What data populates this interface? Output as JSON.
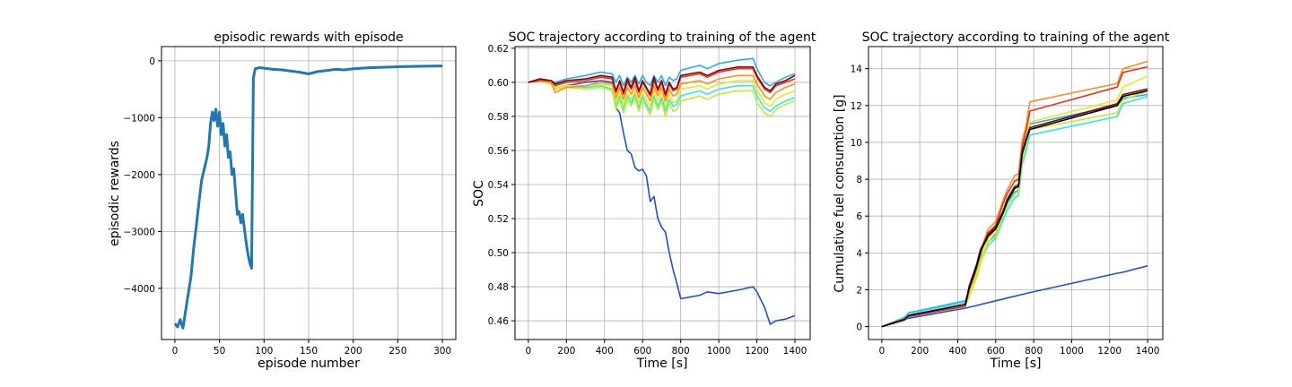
{
  "chart_data": [
    {
      "type": "line",
      "title": "episodic rewards with episode",
      "xlabel": "episode number",
      "ylabel": "episodic rewards",
      "xlim": [
        -15,
        315
      ],
      "ylim": [
        -4900,
        250
      ],
      "xticks": [
        0,
        50,
        100,
        150,
        200,
        250,
        300
      ],
      "yticks": [
        0,
        -1000,
        -2000,
        -3000,
        -4000
      ],
      "ytick_labels": [
        "0",
        "−1000",
        "−2000",
        "−3000",
        "−4000"
      ],
      "grid": true,
      "series": [
        {
          "color": "#1f77b4",
          "x": [
            0,
            3,
            6,
            9,
            12,
            15,
            18,
            21,
            24,
            27,
            30,
            33,
            36,
            38,
            40,
            42,
            44,
            46,
            48,
            50,
            52,
            54,
            56,
            58,
            60,
            62,
            64,
            66,
            68,
            70,
            72,
            74,
            76,
            78,
            80,
            82,
            84,
            86,
            88,
            90,
            95,
            100,
            110,
            120,
            130,
            140,
            150,
            160,
            170,
            180,
            190,
            200,
            220,
            240,
            260,
            280,
            300
          ],
          "values": [
            -4620,
            -4680,
            -4550,
            -4700,
            -4400,
            -4100,
            -3800,
            -3300,
            -2900,
            -2500,
            -2100,
            -1900,
            -1700,
            -1500,
            -1100,
            -900,
            -1050,
            -850,
            -1150,
            -900,
            -1300,
            -1100,
            -1500,
            -1300,
            -1700,
            -1600,
            -2000,
            -1900,
            -2300,
            -2700,
            -2650,
            -2850,
            -2700,
            -2950,
            -3200,
            -3400,
            -3550,
            -3650,
            -300,
            -140,
            -120,
            -130,
            -150,
            -160,
            -180,
            -200,
            -230,
            -190,
            -170,
            -150,
            -160,
            -140,
            -120,
            -110,
            -100,
            -95,
            -90
          ]
        }
      ]
    },
    {
      "type": "line",
      "title": "SOC trajectory according to training of the agent",
      "xlabel": "Time [s]",
      "ylabel": "SOC",
      "xlim": [
        -70,
        1480
      ],
      "ylim": [
        0.449,
        0.621
      ],
      "xticks": [
        0,
        200,
        400,
        600,
        800,
        1000,
        1200,
        1400
      ],
      "yticks": [
        0.46,
        0.48,
        0.5,
        0.52,
        0.54,
        0.56,
        0.58,
        0.6,
        0.62
      ],
      "ytick_labels": [
        "0.46",
        "0.48",
        "0.50",
        "0.52",
        "0.54",
        "0.56",
        "0.58",
        "0.60",
        "0.62"
      ],
      "grid": true,
      "x": [
        0,
        60,
        120,
        140,
        200,
        300,
        380,
        440,
        460,
        480,
        500,
        520,
        540,
        560,
        580,
        600,
        620,
        640,
        660,
        680,
        700,
        720,
        740,
        760,
        780,
        800,
        900,
        940,
        1000,
        1100,
        1180,
        1200,
        1240,
        1270,
        1300,
        1350,
        1400
      ],
      "series": [
        {
          "color": "#1f4fd8",
          "values": [
            0.6,
            0.601,
            0.6,
            0.597,
            0.598,
            0.6,
            0.601,
            0.6,
            0.585,
            0.582,
            0.57,
            0.56,
            0.558,
            0.55,
            0.548,
            0.549,
            0.545,
            0.53,
            0.533,
            0.52,
            0.515,
            0.512,
            0.5,
            0.49,
            0.482,
            0.473,
            0.475,
            0.477,
            0.476,
            0.478,
            0.48,
            0.477,
            0.468,
            0.458,
            0.46,
            0.461,
            0.463
          ]
        },
        {
          "color": "#1fb0f0",
          "values": [
            0.6,
            0.602,
            0.601,
            0.6,
            0.602,
            0.604,
            0.606,
            0.605,
            0.6,
            0.604,
            0.598,
            0.603,
            0.6,
            0.604,
            0.599,
            0.604,
            0.6,
            0.598,
            0.604,
            0.6,
            0.604,
            0.598,
            0.603,
            0.601,
            0.602,
            0.607,
            0.61,
            0.608,
            0.611,
            0.613,
            0.614,
            0.608,
            0.6,
            0.598,
            0.6,
            0.603,
            0.605
          ]
        },
        {
          "color": "#33e6e6",
          "values": [
            0.6,
            0.601,
            0.599,
            0.597,
            0.598,
            0.597,
            0.598,
            0.596,
            0.586,
            0.592,
            0.584,
            0.592,
            0.588,
            0.593,
            0.585,
            0.592,
            0.587,
            0.583,
            0.592,
            0.586,
            0.591,
            0.583,
            0.59,
            0.586,
            0.587,
            0.592,
            0.595,
            0.593,
            0.596,
            0.598,
            0.598,
            0.592,
            0.585,
            0.583,
            0.586,
            0.589,
            0.591
          ]
        },
        {
          "color": "#b8f02a",
          "values": [
            0.6,
            0.601,
            0.599,
            0.596,
            0.597,
            0.596,
            0.597,
            0.595,
            0.584,
            0.59,
            0.582,
            0.59,
            0.586,
            0.591,
            0.583,
            0.59,
            0.585,
            0.581,
            0.59,
            0.584,
            0.589,
            0.58,
            0.588,
            0.583,
            0.584,
            0.589,
            0.592,
            0.59,
            0.593,
            0.595,
            0.595,
            0.588,
            0.582,
            0.58,
            0.584,
            0.587,
            0.589
          ]
        },
        {
          "color": "#e8e81c",
          "values": [
            0.6,
            0.601,
            0.6,
            0.597,
            0.598,
            0.598,
            0.599,
            0.598,
            0.589,
            0.594,
            0.587,
            0.594,
            0.59,
            0.595,
            0.588,
            0.594,
            0.59,
            0.586,
            0.595,
            0.589,
            0.594,
            0.586,
            0.593,
            0.588,
            0.589,
            0.596,
            0.598,
            0.596,
            0.599,
            0.601,
            0.601,
            0.596,
            0.588,
            0.586,
            0.59,
            0.593,
            0.595
          ]
        },
        {
          "color": "#ff8c1a",
          "values": [
            0.6,
            0.601,
            0.6,
            0.594,
            0.597,
            0.598,
            0.6,
            0.599,
            0.591,
            0.597,
            0.59,
            0.597,
            0.593,
            0.598,
            0.591,
            0.597,
            0.593,
            0.589,
            0.598,
            0.592,
            0.597,
            0.589,
            0.596,
            0.592,
            0.593,
            0.599,
            0.601,
            0.599,
            0.602,
            0.604,
            0.604,
            0.599,
            0.592,
            0.59,
            0.594,
            0.597,
            0.599
          ]
        },
        {
          "color": "#e8331c",
          "values": [
            0.6,
            0.601,
            0.601,
            0.598,
            0.6,
            0.601,
            0.603,
            0.602,
            0.594,
            0.6,
            0.593,
            0.6,
            0.596,
            0.601,
            0.594,
            0.6,
            0.596,
            0.592,
            0.601,
            0.595,
            0.6,
            0.592,
            0.599,
            0.595,
            0.596,
            0.603,
            0.605,
            0.603,
            0.606,
            0.608,
            0.608,
            0.603,
            0.596,
            0.594,
            0.598,
            0.6,
            0.602
          ]
        },
        {
          "color": "#8b0000",
          "values": [
            0.6,
            0.602,
            0.601,
            0.599,
            0.601,
            0.602,
            0.604,
            0.603,
            0.595,
            0.601,
            0.594,
            0.602,
            0.597,
            0.603,
            0.595,
            0.601,
            0.597,
            0.593,
            0.603,
            0.596,
            0.601,
            0.593,
            0.6,
            0.596,
            0.597,
            0.604,
            0.606,
            0.604,
            0.607,
            0.609,
            0.609,
            0.604,
            0.597,
            0.595,
            0.599,
            0.601,
            0.604
          ]
        }
      ]
    },
    {
      "type": "line",
      "title": "SOC trajectory according to training of the agent",
      "xlabel": "Time [s]",
      "ylabel": "Cumulative fuel consumtion [g]",
      "xlim": [
        -70,
        1480
      ],
      "ylim": [
        -0.7,
        15.2
      ],
      "xticks": [
        0,
        200,
        400,
        600,
        800,
        1000,
        1200,
        1400
      ],
      "yticks": [
        0,
        2,
        4,
        6,
        8,
        10,
        12,
        14
      ],
      "ytick_labels": [
        "0",
        "2",
        "4",
        "6",
        "8",
        "10",
        "12",
        "14"
      ],
      "grid": true,
      "x": [
        0,
        120,
        140,
        440,
        460,
        500,
        520,
        560,
        600,
        640,
        660,
        700,
        720,
        740,
        760,
        780,
        1240,
        1270,
        1400
      ],
      "series": [
        {
          "color": "#1f4fd8",
          "values": [
            0.0,
            0.4,
            0.45,
            1.0,
            1.05,
            1.15,
            1.2,
            1.3,
            1.4,
            1.5,
            1.55,
            1.65,
            1.7,
            1.75,
            1.8,
            1.85,
            2.9,
            2.95,
            3.3
          ]
        },
        {
          "color": "#1fb0f0",
          "values": [
            0.0,
            0.5,
            0.75,
            1.4,
            2.0,
            3.0,
            3.8,
            4.6,
            5.0,
            6.1,
            6.7,
            7.3,
            7.4,
            9.2,
            9.9,
            11.0,
            12.0,
            12.4,
            12.6
          ]
        },
        {
          "color": "#33e6e6",
          "values": [
            0.0,
            0.45,
            0.7,
            1.3,
            1.8,
            2.8,
            3.5,
            4.4,
            4.8,
            5.8,
            6.3,
            7.0,
            7.1,
            8.8,
            9.5,
            10.4,
            11.4,
            12.1,
            12.5
          ]
        },
        {
          "color": "#b8f02a",
          "values": [
            0.0,
            0.4,
            0.6,
            1.2,
            1.6,
            2.7,
            3.4,
            4.6,
            4.9,
            6.0,
            6.5,
            7.2,
            7.3,
            9.1,
            9.8,
            10.7,
            11.6,
            12.3,
            12.8
          ]
        },
        {
          "color": "#e8e81c",
          "values": [
            0.0,
            0.4,
            0.6,
            1.2,
            1.7,
            2.9,
            3.6,
            4.8,
            5.1,
            6.3,
            6.8,
            7.5,
            7.6,
            9.4,
            10.1,
            11.1,
            12.3,
            13.0,
            13.6
          ]
        },
        {
          "color": "#ff8c1a",
          "values": [
            0.0,
            0.35,
            0.55,
            1.1,
            2.1,
            3.3,
            4.1,
            5.3,
            5.7,
            6.9,
            7.4,
            8.2,
            8.3,
            10.1,
            10.9,
            12.2,
            13.2,
            14.0,
            14.4
          ]
        },
        {
          "color": "#e8331c",
          "values": [
            0.0,
            0.35,
            0.55,
            1.1,
            2.0,
            3.2,
            4.0,
            5.1,
            5.5,
            6.7,
            7.2,
            7.9,
            8.0,
            9.8,
            10.6,
            11.7,
            13.0,
            13.8,
            14.1
          ]
        },
        {
          "color": "#8b0000",
          "values": [
            0.0,
            0.4,
            0.6,
            1.2,
            2.2,
            3.4,
            4.2,
            5.0,
            5.4,
            6.3,
            6.9,
            7.6,
            7.7,
            9.5,
            10.2,
            10.8,
            12.1,
            12.6,
            12.9
          ]
        },
        {
          "color": "#000000",
          "values": [
            0.0,
            0.4,
            0.6,
            1.2,
            2.1,
            3.3,
            4.1,
            4.9,
            5.3,
            6.2,
            6.8,
            7.5,
            7.6,
            9.4,
            10.1,
            10.7,
            12.0,
            12.5,
            12.8
          ]
        }
      ]
    }
  ]
}
